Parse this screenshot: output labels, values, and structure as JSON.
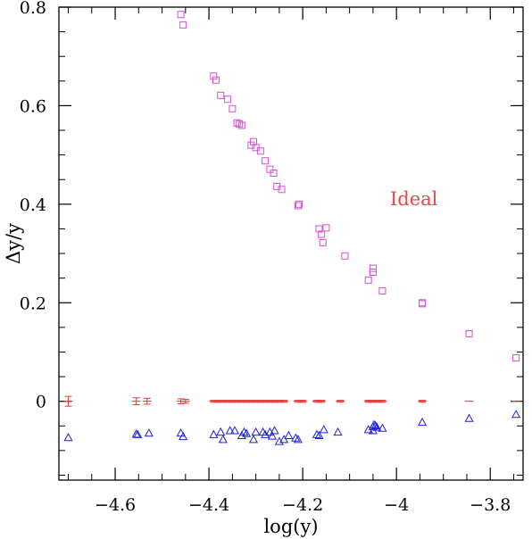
{
  "chart_data": {
    "type": "scatter",
    "title": "",
    "xlabel": "log(y)",
    "ylabel": "Δy/y",
    "xlim": [
      -4.72,
      -3.73
    ],
    "ylim": [
      -0.16,
      0.8
    ],
    "x_ticks": [
      -4.6,
      -4.4,
      -4.2,
      -4,
      -3.8
    ],
    "x_tick_labels": [
      "−4.6",
      "−4.4",
      "−4.2",
      "−4",
      "−3.8"
    ],
    "y_ticks": [
      0,
      0.2,
      0.4,
      0.6,
      0.8
    ],
    "y_tick_labels": [
      "0",
      "0.2",
      "0.4",
      "0.6",
      "0.8"
    ],
    "grid": false,
    "annotation": "Ideal",
    "colors": {
      "squares": "#d64fd6",
      "triangles": "#1f22d6",
      "error_bars": "#e23a3a"
    },
    "series": [
      {
        "marker": "square",
        "points": [
          [
            -4.46,
            0.785
          ],
          [
            -4.455,
            0.764
          ],
          [
            -4.39,
            0.66
          ],
          [
            -4.385,
            0.652
          ],
          [
            -4.375,
            0.621
          ],
          [
            -4.36,
            0.613
          ],
          [
            -4.35,
            0.594
          ],
          [
            -4.34,
            0.565
          ],
          [
            -4.335,
            0.563
          ],
          [
            -4.33,
            0.56
          ],
          [
            -4.31,
            0.52
          ],
          [
            -4.305,
            0.527
          ],
          [
            -4.3,
            0.515
          ],
          [
            -4.29,
            0.508
          ],
          [
            -4.28,
            0.488
          ],
          [
            -4.27,
            0.471
          ],
          [
            -4.262,
            0.463
          ],
          [
            -4.255,
            0.436
          ],
          [
            -4.245,
            0.43
          ],
          [
            -4.21,
            0.397
          ],
          [
            -4.208,
            0.4
          ],
          [
            -4.165,
            0.35
          ],
          [
            -4.16,
            0.339
          ],
          [
            -4.157,
            0.322
          ],
          [
            -4.15,
            0.352
          ],
          [
            -4.11,
            0.295
          ],
          [
            -4.06,
            0.246
          ],
          [
            -4.05,
            0.27
          ],
          [
            -4.05,
            0.262
          ],
          [
            -4.03,
            0.224
          ],
          [
            -3.945,
            0.2
          ],
          [
            -3.945,
            0.198
          ],
          [
            -3.845,
            0.137
          ],
          [
            -3.745,
            0.088
          ]
        ]
      },
      {
        "marker": "triangle",
        "points": [
          [
            -4.7,
            -0.074
          ],
          [
            -4.555,
            -0.067
          ],
          [
            -4.552,
            -0.068
          ],
          [
            -4.528,
            -0.065
          ],
          [
            -4.46,
            -0.065
          ],
          [
            -4.455,
            -0.072
          ],
          [
            -4.39,
            -0.068
          ],
          [
            -4.375,
            -0.063
          ],
          [
            -4.37,
            -0.078
          ],
          [
            -4.355,
            -0.06
          ],
          [
            -4.345,
            -0.06
          ],
          [
            -4.33,
            -0.07
          ],
          [
            -4.325,
            -0.063
          ],
          [
            -4.32,
            -0.066
          ],
          [
            -4.305,
            -0.078
          ],
          [
            -4.3,
            -0.063
          ],
          [
            -4.285,
            -0.063
          ],
          [
            -4.28,
            -0.068
          ],
          [
            -4.27,
            -0.063
          ],
          [
            -4.265,
            -0.071
          ],
          [
            -4.26,
            -0.06
          ],
          [
            -4.25,
            -0.082
          ],
          [
            -4.24,
            -0.078
          ],
          [
            -4.23,
            -0.07
          ],
          [
            -4.215,
            -0.075
          ],
          [
            -4.21,
            -0.078
          ],
          [
            -4.17,
            -0.068
          ],
          [
            -4.165,
            -0.07
          ],
          [
            -4.155,
            -0.058
          ],
          [
            -4.125,
            -0.063
          ],
          [
            -4.06,
            -0.058
          ],
          [
            -4.05,
            -0.06
          ],
          [
            -4.05,
            -0.052
          ],
          [
            -4.048,
            -0.048
          ],
          [
            -4.045,
            -0.05
          ],
          [
            -4.042,
            -0.053
          ],
          [
            -4.03,
            -0.055
          ],
          [
            -3.945,
            -0.043
          ],
          [
            -3.845,
            -0.035
          ],
          [
            -3.745,
            -0.027
          ]
        ]
      },
      {
        "marker": "error_bar",
        "points": [
          [
            -4.7,
            0,
            0.01
          ],
          [
            -4.555,
            0,
            0.007
          ],
          [
            -4.532,
            0,
            0.006
          ],
          [
            -4.46,
            0,
            0.005
          ],
          [
            -4.45,
            0,
            0.004
          ],
          [
            -4.39,
            0,
            0.002
          ],
          [
            -4.38,
            0,
            0.002
          ],
          [
            -4.37,
            0,
            0.002
          ],
          [
            -4.36,
            0,
            0.002
          ],
          [
            -4.35,
            0,
            0.002
          ],
          [
            -4.34,
            0,
            0.002
          ],
          [
            -4.33,
            0,
            0.002
          ],
          [
            -4.32,
            0,
            0.002
          ],
          [
            -4.31,
            0,
            0.002
          ],
          [
            -4.3,
            0,
            0.002
          ],
          [
            -4.29,
            0,
            0.002
          ],
          [
            -4.28,
            0,
            0.002
          ],
          [
            -4.27,
            0,
            0.002
          ],
          [
            -4.26,
            0,
            0.002
          ],
          [
            -4.25,
            0,
            0.002
          ],
          [
            -4.24,
            0,
            0.002
          ],
          [
            -4.21,
            0,
            0.002
          ],
          [
            -4.2,
            0,
            0.002
          ],
          [
            -4.17,
            0,
            0.002
          ],
          [
            -4.16,
            0,
            0.002
          ],
          [
            -4.12,
            0,
            0.002
          ],
          [
            -4.06,
            0,
            0.002
          ],
          [
            -4.05,
            0,
            0.002
          ],
          [
            -4.04,
            0,
            0.002
          ],
          [
            -4.03,
            0,
            0.002
          ],
          [
            -3.945,
            0,
            0.002
          ],
          [
            -3.845,
            0,
            0.001
          ],
          [
            -3.745,
            0,
            0.001
          ]
        ]
      }
    ]
  }
}
